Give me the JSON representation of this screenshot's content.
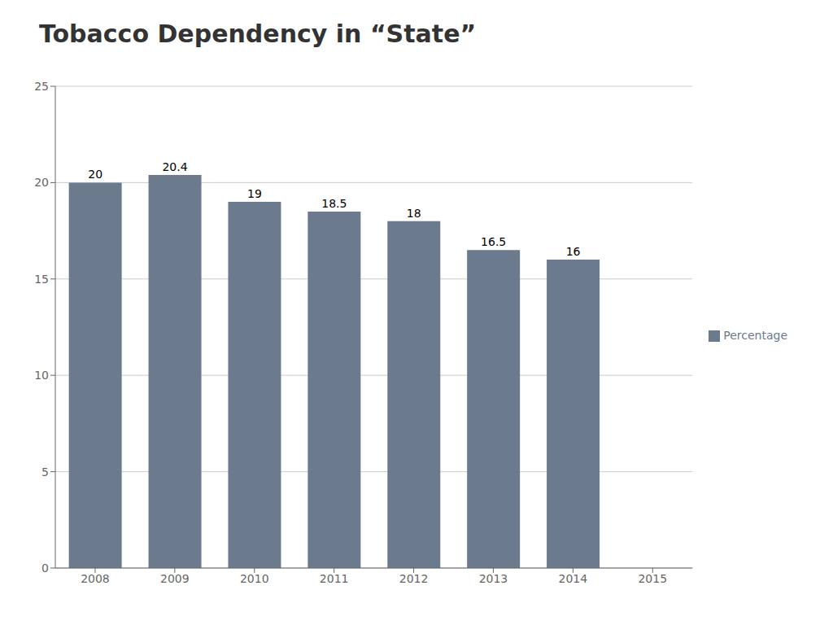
{
  "chart_data": {
    "type": "bar",
    "title": "Tobacco Dependency in “State”",
    "categories": [
      "2008",
      "2009",
      "2010",
      "2011",
      "2012",
      "2013",
      "2014",
      "2015"
    ],
    "series": [
      {
        "name": "Percentage",
        "color": "#6B7B8D",
        "values": [
          20,
          20.4,
          19,
          18.5,
          18,
          16.5,
          16,
          null
        ]
      }
    ],
    "ylim": [
      0,
      25
    ],
    "yticks": [
      0,
      5,
      10,
      15,
      20,
      25
    ],
    "grid": true,
    "legend": "right",
    "data_labels": true
  }
}
